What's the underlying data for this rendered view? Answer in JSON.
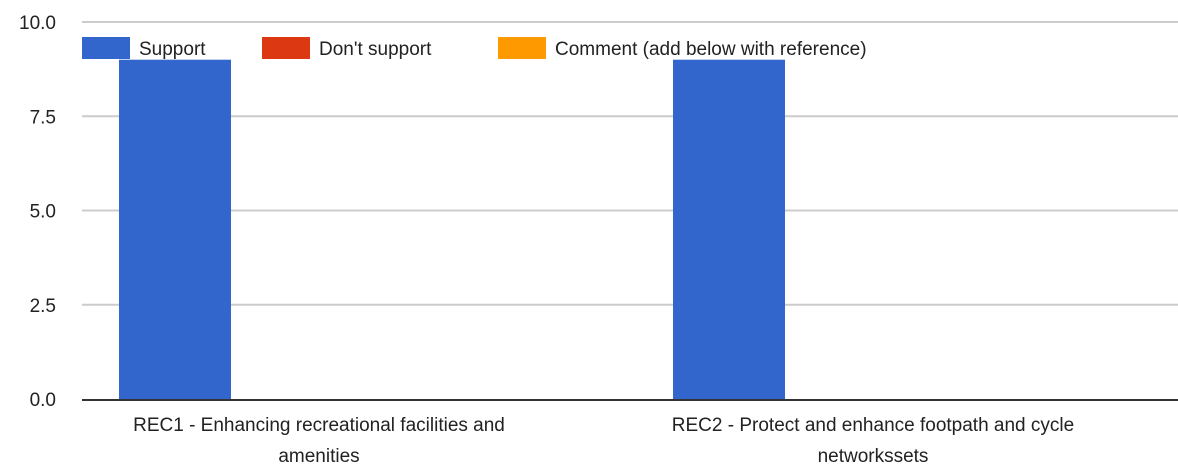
{
  "chart_data": {
    "type": "bar",
    "categories": [
      "REC1 - Enhancing recreational facilities and amenities",
      "REC2 - Protect and enhance footpath and cycle networkssets"
    ],
    "category_lines": [
      [
        "REC1 - Enhancing recreational facilities and",
        "amenities"
      ],
      [
        "REC2 - Protect and enhance footpath and cycle",
        "networkssets"
      ]
    ],
    "series": [
      {
        "name": "Support",
        "values": [
          9,
          9
        ],
        "color": "#3366cc"
      },
      {
        "name": "Don't support",
        "values": [
          0,
          0
        ],
        "color": "#dc3912"
      },
      {
        "name": "Comment (add below with reference)",
        "values": [
          0,
          0
        ],
        "color": "#ff9900"
      }
    ],
    "ylim": [
      0,
      10
    ],
    "yticks": [
      "0.0",
      "2.5",
      "5.0",
      "7.5",
      "10.0"
    ],
    "ytick_values": [
      0,
      2.5,
      5,
      7.5,
      10
    ],
    "grid": true,
    "legend_position": "top-left",
    "title": "",
    "xlabel": "",
    "ylabel": ""
  }
}
